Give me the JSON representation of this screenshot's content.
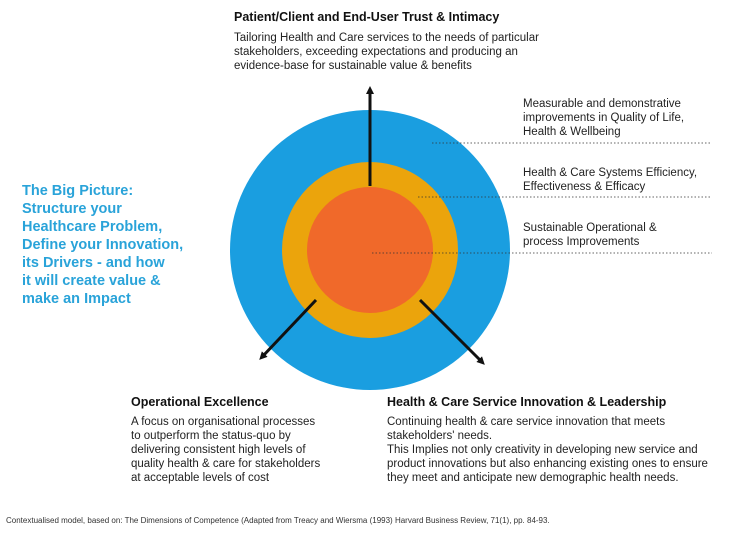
{
  "top": {
    "heading": "Patient/Client and End-User Trust & Intimacy",
    "lines": [
      "Tailoring Health and Care services to the needs of particular",
      "stakeholders, exceeding expectations and producing an",
      "evidence-base for sustainable value & benefits"
    ]
  },
  "big_picture": {
    "lines": [
      "The Big Picture:",
      "Structure your",
      "Healthcare Problem,",
      "Define your Innovation,",
      "its Drivers - and how",
      "it will create value &",
      "make an Impact"
    ]
  },
  "rings": {
    "outer": {
      "lines": [
        "Measurable and demonstrative",
        "improvements in Quality of Life,",
        "Health & Wellbeing"
      ],
      "color": "#1a9ee0"
    },
    "middle": {
      "lines": [
        "Health & Care Systems Efficiency,",
        "Effectiveness & Efficacy"
      ],
      "color": "#eba40c"
    },
    "inner": {
      "lines": [
        "Sustainable Operational &",
        "process Improvements"
      ],
      "color": "#f0692a"
    }
  },
  "left": {
    "heading": "Operational Excellence",
    "lines": [
      "A focus on organisational processes",
      "to outperform the status-quo by",
      "delivering consistent high levels of",
      "quality health & care for stakeholders",
      "at acceptable levels of cost"
    ]
  },
  "right": {
    "heading": "Health & Care Service Innovation & Leadership",
    "lines": [
      "Continuing health & care service innovation that meets",
      "stakeholders' needs.",
      "This Implies not only creativity in developing new service and",
      "product innovations but also enhancing existing ones to ensure",
      "they meet and anticipate new demographic health needs."
    ]
  },
  "footnote": "Contextualised model, based on: The Dimensions of Competence (Adapted from Treacy and Wiersma (1993) Harvard Business Review, 71(1), pp. 84-93."
}
